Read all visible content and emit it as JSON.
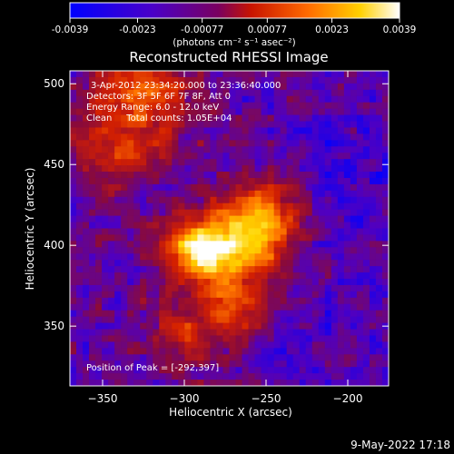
{
  "chart_data": {
    "type": "heatmap",
    "title": "Reconstructed RHESSI Image",
    "colorbar": {
      "ticks": [
        "-0.0039",
        "-0.0023",
        "-0.00077",
        "0.00077",
        "0.0023",
        "0.0039"
      ],
      "tick_values": [
        -0.0039,
        -0.0023,
        -0.00077,
        0.00077,
        0.0023,
        0.0039
      ],
      "units": "(photons cm⁻² s⁻¹ asec⁻²)",
      "colors": [
        "#0000ff",
        "#5000c0",
        "#8a0a3a",
        "#d42000",
        "#ff7800",
        "#ffd600",
        "#ffffff"
      ]
    },
    "xlabel": "Heliocentric X (arcsec)",
    "ylabel": "Heliocentric Y (arcsec)",
    "xlim": [
      -370,
      -175
    ],
    "ylim": [
      313,
      508
    ],
    "xticks": [
      -350,
      -300,
      -250,
      -200
    ],
    "xtick_labels": [
      "−350",
      "−300",
      "−250",
      "−200"
    ],
    "yticks": [
      350,
      400,
      450,
      500
    ],
    "ytick_labels": [
      "350",
      "400",
      "450",
      "500"
    ],
    "info_lines": [
      "3-Apr-2012 23:34:20.000 to 23:36:40.000",
      "Detectors: 3F 5F 6F 7F 8F, Att 0",
      "Energy Range: 6.0 - 12.0 keV",
      "Clean     Total counts: 1.05E+04"
    ],
    "peak_text": "Position of Peak = [-292,397]",
    "peak": [
      -292,
      397
    ]
  },
  "footer": {
    "timestamp": "9-May-2022 17:18"
  }
}
